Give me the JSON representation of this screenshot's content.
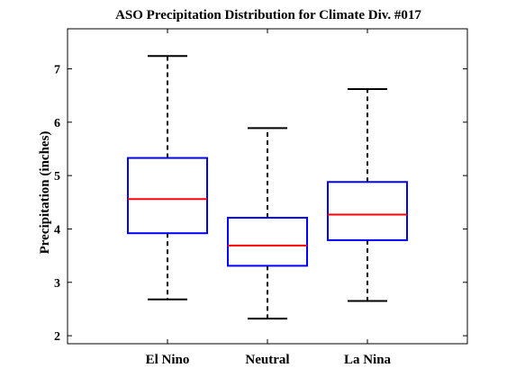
{
  "chart_data": {
    "type": "box",
    "title": "ASO Precipitation Distribution for Climate Div. #017",
    "xlabel": "",
    "ylabel": "Precipitation (inches)",
    "ylim": [
      1.85,
      7.75
    ],
    "yticks": [
      2,
      3,
      4,
      5,
      6,
      7
    ],
    "grid": false,
    "categories": [
      "El Nino",
      "Neutral",
      "La Nina"
    ],
    "boxes": [
      {
        "category": "El Nino",
        "min": 2.68,
        "q1": 3.92,
        "median": 4.56,
        "q3": 5.33,
        "max": 7.24
      },
      {
        "category": "Neutral",
        "min": 2.32,
        "q1": 3.31,
        "median": 3.69,
        "q3": 4.21,
        "max": 5.89
      },
      {
        "category": "La Nina",
        "min": 2.65,
        "q1": 3.79,
        "median": 4.27,
        "q3": 4.88,
        "max": 6.62
      }
    ],
    "colors": {
      "box": "#0000ff",
      "median": "#ff0000",
      "whisker": "#000000",
      "axes": "#000000"
    }
  }
}
